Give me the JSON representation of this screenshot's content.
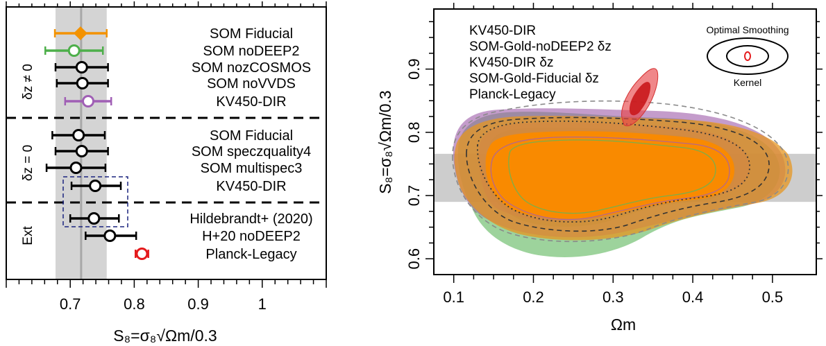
{
  "chart_data": [
    {
      "type": "scatter",
      "subtype": "forest-plot",
      "xlabel": "S₈=σ₈√Ωm/0.3",
      "xlim": [
        0.6,
        1.1
      ],
      "xticks": [
        "0.7",
        "0.8",
        "0.9",
        "1"
      ],
      "reference_band": [
        0.677,
        0.757
      ],
      "reference_line": 0.717,
      "groups": [
        {
          "label": "δz ≠ 0",
          "rows": [
            0,
            1,
            2,
            3,
            4
          ]
        },
        {
          "label": "δz = 0",
          "rows": [
            5,
            6,
            7,
            8
          ]
        },
        {
          "label": "Ext",
          "rows": [
            9,
            10,
            11
          ]
        }
      ],
      "points": [
        {
          "label": "SOM Fiducial",
          "value": 0.716,
          "lo": 0.676,
          "hi": 0.757,
          "color": "#f39200",
          "marker": "diamond-filled"
        },
        {
          "label": "SOM noDEEP2",
          "value": 0.706,
          "lo": 0.661,
          "hi": 0.751,
          "color": "#4daf4a",
          "marker": "circle-open"
        },
        {
          "label": "SOM nozCOSMOS",
          "value": 0.718,
          "lo": 0.677,
          "hi": 0.759,
          "color": "#000000",
          "marker": "circle-open"
        },
        {
          "label": "SOM noVVDS",
          "value": 0.719,
          "lo": 0.679,
          "hi": 0.759,
          "color": "#000000",
          "marker": "circle-open"
        },
        {
          "label": "KV450-DIR",
          "value": 0.728,
          "lo": 0.692,
          "hi": 0.764,
          "color": "#a05fb5",
          "marker": "circle-open"
        },
        {
          "label": "SOM Fiducial",
          "value": 0.713,
          "lo": 0.672,
          "hi": 0.754,
          "color": "#000000",
          "marker": "circle-open"
        },
        {
          "label": "SOM speczquality4",
          "value": 0.718,
          "lo": 0.677,
          "hi": 0.759,
          "color": "#000000",
          "marker": "circle-open"
        },
        {
          "label": "SOM multispec3",
          "value": 0.709,
          "lo": 0.663,
          "hi": 0.755,
          "color": "#000000",
          "marker": "circle-open"
        },
        {
          "label": "KV450-DIR",
          "value": 0.739,
          "lo": 0.702,
          "hi": 0.779,
          "color": "#000000",
          "marker": "circle-open"
        },
        {
          "label": "Hildebrandt+ (2020)",
          "value": 0.737,
          "lo": 0.7,
          "hi": 0.776,
          "color": "#000000",
          "marker": "circle-open"
        },
        {
          "label": "H+20 noDEEP2",
          "value": 0.762,
          "lo": 0.724,
          "hi": 0.803,
          "color": "#000000",
          "marker": "circle-open"
        },
        {
          "label": "Planck-Legacy",
          "value": 0.812,
          "lo": 0.802,
          "hi": 0.822,
          "color": "#e41a1c",
          "marker": "circle-open"
        }
      ]
    },
    {
      "type": "contour",
      "xlabel": "Ωm",
      "ylabel": "S₈=σ₈√Ωm/0.3",
      "xlim": [
        0.075,
        0.555
      ],
      "ylim": [
        0.575,
        0.995
      ],
      "xticks": [
        "0.1",
        "0.2",
        "0.3",
        "0.4",
        "0.5"
      ],
      "yticks": [
        "0.6",
        "0.7",
        "0.8",
        "0.9"
      ],
      "band": [
        0.69,
        0.766
      ],
      "inset_label": "Optimal Smoothing",
      "inset_sublabel": "Kernel",
      "legend_position": "top-left",
      "series": [
        {
          "name": "KV450-DIR",
          "color": "#000000",
          "style": "dashed"
        },
        {
          "name": "SOM-Gold-noDEEP2 δz",
          "color": "#4daf4a",
          "style": "filled"
        },
        {
          "name": "KV450-DIR δz",
          "color": "#a05fb5",
          "style": "filled"
        },
        {
          "name": "SOM-Gold-Fiducial δz",
          "color": "#f39200",
          "style": "filled"
        },
        {
          "name": "Planck-Legacy",
          "color": "#e41a1c",
          "style": "filled"
        }
      ]
    }
  ]
}
